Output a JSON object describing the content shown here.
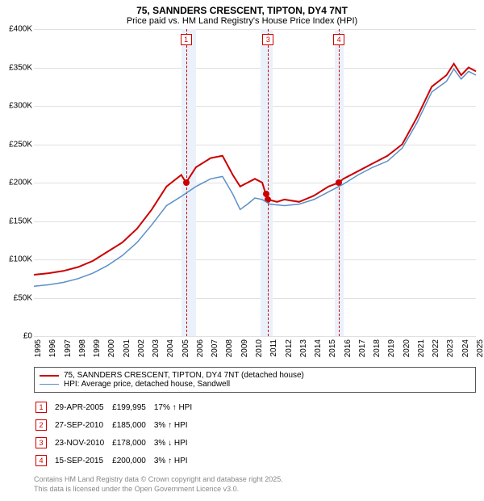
{
  "title": "75, SANNDERS CRESCENT, TIPTON, DY4 7NT",
  "subtitle": "Price paid vs. HM Land Registry's House Price Index (HPI)",
  "chart": {
    "type": "line",
    "background_color": "#ffffff",
    "grid_color": "#e0e0e0",
    "y": {
      "min": 0,
      "max": 400000,
      "step": 50000,
      "prefix": "£",
      "labels": [
        "£0",
        "£50K",
        "£100K",
        "£150K",
        "£200K",
        "£250K",
        "£300K",
        "£350K",
        "£400K"
      ]
    },
    "x": {
      "min": 1995,
      "max": 2025,
      "step": 1,
      "labels": [
        "1995",
        "1996",
        "1997",
        "1998",
        "1999",
        "2000",
        "2001",
        "2002",
        "2003",
        "2004",
        "2005",
        "2006",
        "2007",
        "2008",
        "2009",
        "2010",
        "2011",
        "2012",
        "2013",
        "2014",
        "2015",
        "2016",
        "2017",
        "2018",
        "2019",
        "2020",
        "2021",
        "2022",
        "2023",
        "2024",
        "2025"
      ]
    },
    "shaded_bands": [
      {
        "from": 2005.0,
        "to": 2006.0
      },
      {
        "from": 2010.4,
        "to": 2011.2
      },
      {
        "from": 2015.4,
        "to": 2016.0
      }
    ],
    "markers": [
      {
        "n": 1,
        "x": 2005.33
      },
      {
        "n": 3,
        "x": 2010.9
      },
      {
        "n": 4,
        "x": 2015.7
      }
    ],
    "sale_points": [
      {
        "x": 2005.33,
        "y": 199995
      },
      {
        "x": 2010.74,
        "y": 185000
      },
      {
        "x": 2010.9,
        "y": 178000
      },
      {
        "x": 2015.7,
        "y": 200000
      }
    ],
    "series": [
      {
        "name": "75, SANNDERS CRESCENT, TIPTON, DY4 7NT (detached house)",
        "color": "#cc0000",
        "width": 2,
        "points": [
          [
            1995,
            80000
          ],
          [
            1996,
            82000
          ],
          [
            1997,
            85000
          ],
          [
            1998,
            90000
          ],
          [
            1999,
            98000
          ],
          [
            2000,
            110000
          ],
          [
            2001,
            122000
          ],
          [
            2002,
            140000
          ],
          [
            2003,
            165000
          ],
          [
            2004,
            195000
          ],
          [
            2005,
            210000
          ],
          [
            2005.33,
            199995
          ],
          [
            2006,
            220000
          ],
          [
            2007,
            232000
          ],
          [
            2007.8,
            235000
          ],
          [
            2008.5,
            210000
          ],
          [
            2009,
            195000
          ],
          [
            2009.5,
            200000
          ],
          [
            2010,
            205000
          ],
          [
            2010.5,
            200000
          ],
          [
            2010.74,
            185000
          ],
          [
            2010.9,
            178000
          ],
          [
            2011.5,
            175000
          ],
          [
            2012,
            178000
          ],
          [
            2013,
            175000
          ],
          [
            2014,
            183000
          ],
          [
            2015,
            195000
          ],
          [
            2015.7,
            200000
          ],
          [
            2016,
            205000
          ],
          [
            2017,
            215000
          ],
          [
            2018,
            225000
          ],
          [
            2019,
            235000
          ],
          [
            2020,
            250000
          ],
          [
            2021,
            285000
          ],
          [
            2022,
            325000
          ],
          [
            2023,
            340000
          ],
          [
            2023.5,
            355000
          ],
          [
            2024,
            340000
          ],
          [
            2024.5,
            350000
          ],
          [
            2025,
            345000
          ]
        ]
      },
      {
        "name": "HPI: Average price, detached house, Sandwell",
        "color": "#5b8fc7",
        "width": 1.5,
        "points": [
          [
            1995,
            65000
          ],
          [
            1996,
            67000
          ],
          [
            1997,
            70000
          ],
          [
            1998,
            75000
          ],
          [
            1999,
            82000
          ],
          [
            2000,
            92000
          ],
          [
            2001,
            105000
          ],
          [
            2002,
            122000
          ],
          [
            2003,
            145000
          ],
          [
            2004,
            170000
          ],
          [
            2005,
            182000
          ],
          [
            2006,
            195000
          ],
          [
            2007,
            205000
          ],
          [
            2007.8,
            208000
          ],
          [
            2008.5,
            185000
          ],
          [
            2009,
            165000
          ],
          [
            2009.5,
            172000
          ],
          [
            2010,
            180000
          ],
          [
            2010.5,
            178000
          ],
          [
            2011,
            172000
          ],
          [
            2012,
            170000
          ],
          [
            2013,
            172000
          ],
          [
            2014,
            178000
          ],
          [
            2015,
            188000
          ],
          [
            2016,
            198000
          ],
          [
            2017,
            210000
          ],
          [
            2018,
            220000
          ],
          [
            2019,
            228000
          ],
          [
            2020,
            245000
          ],
          [
            2021,
            278000
          ],
          [
            2022,
            318000
          ],
          [
            2023,
            332000
          ],
          [
            2023.5,
            348000
          ],
          [
            2024,
            335000
          ],
          [
            2024.5,
            345000
          ],
          [
            2025,
            340000
          ]
        ]
      }
    ]
  },
  "legend": [
    {
      "color": "#cc0000",
      "width": 2,
      "label": "75, SANNDERS CRESCENT, TIPTON, DY4 7NT (detached house)"
    },
    {
      "color": "#5b8fc7",
      "width": 1.5,
      "label": "HPI: Average price, detached house, Sandwell"
    }
  ],
  "sales": [
    {
      "n": 1,
      "date": "29-APR-2005",
      "price": "£199,995",
      "pct": "17%",
      "dir": "↑",
      "vs": "HPI"
    },
    {
      "n": 2,
      "date": "27-SEP-2010",
      "price": "£185,000",
      "pct": "3%",
      "dir": "↑",
      "vs": "HPI"
    },
    {
      "n": 3,
      "date": "23-NOV-2010",
      "price": "£178,000",
      "pct": "3%",
      "dir": "↓",
      "vs": "HPI"
    },
    {
      "n": 4,
      "date": "15-SEP-2015",
      "price": "£200,000",
      "pct": "3%",
      "dir": "↑",
      "vs": "HPI"
    }
  ],
  "footer": [
    "Contains HM Land Registry data © Crown copyright and database right 2025.",
    "This data is licensed under the Open Government Licence v3.0."
  ]
}
